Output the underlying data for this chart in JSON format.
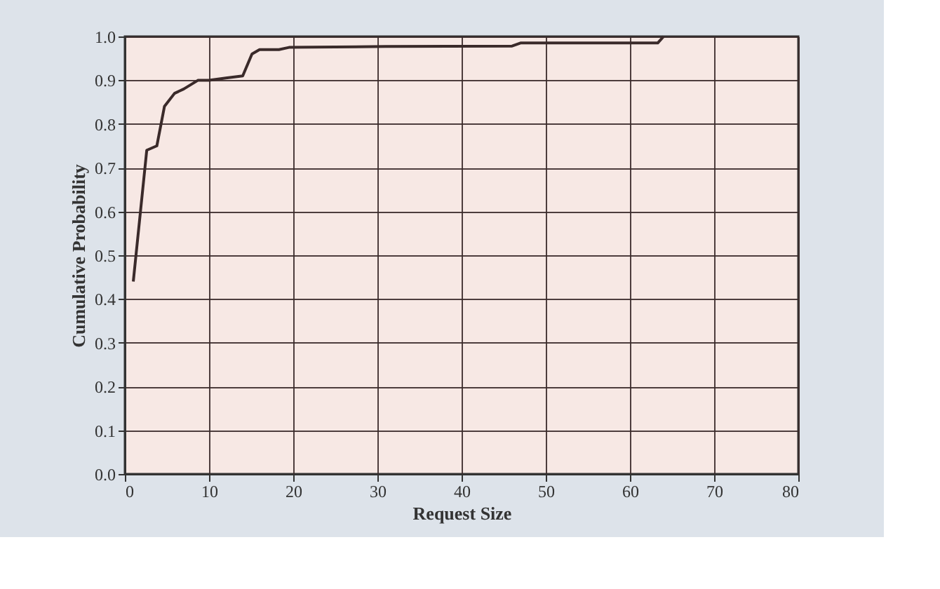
{
  "chart_data": {
    "type": "line",
    "xlabel": "Request Size",
    "ylabel": "Cumulative Probability",
    "x": [
      1,
      2.6,
      3.8,
      4.7,
      5.9,
      7,
      8.7,
      10,
      12,
      14,
      15.1,
      16,
      18.3,
      19.5,
      31,
      46,
      47,
      63.3,
      64
    ],
    "series": [
      {
        "color": "#3a2a2a",
        "values": [
          0.44,
          0.74,
          0.75,
          0.84,
          0.87,
          0.88,
          0.9,
          0.9,
          0.905,
          0.91,
          0.96,
          0.97,
          0.97,
          0.975,
          0.977,
          0.978,
          0.985,
          0.985,
          1.0
        ]
      }
    ],
    "xlim": [
      0,
      80
    ],
    "xticks": [
      0,
      10,
      20,
      30,
      40,
      50,
      60,
      70,
      80
    ],
    "ylim": [
      0,
      1
    ],
    "yticks": [
      {
        "value": 0,
        "label": "0.0"
      },
      0.1,
      0.2,
      0.3,
      0.4,
      0.5,
      0.6,
      0.7,
      0.8,
      0.9,
      {
        "value": 1,
        "label": "1.0"
      }
    ],
    "grid": true,
    "marker": "none",
    "line_style": "solid"
  }
}
